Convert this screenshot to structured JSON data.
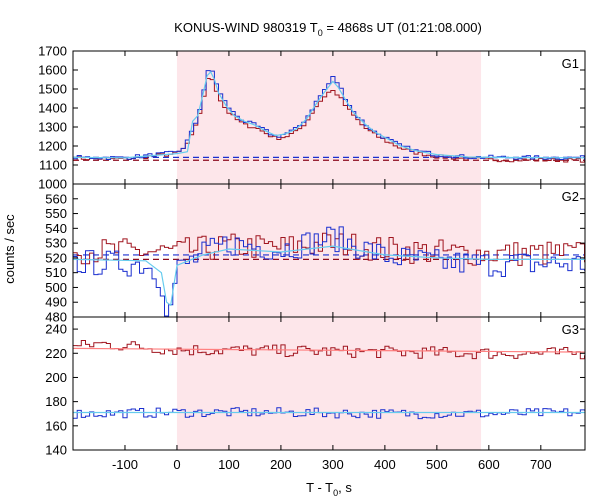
{
  "chart_data": {
    "type": "line",
    "title": {
      "prefix": "KONUS-WIND 980319 T",
      "sub": "0",
      "suffix": " = 4868s UT (01:21:08.000)"
    },
    "xlabel": {
      "prefix": "T - T",
      "sub": "0",
      "suffix": ", s"
    },
    "ylabel": "counts / sec",
    "xlim": [
      -200,
      785
    ],
    "x_ticks": [
      -100,
      0,
      100,
      200,
      300,
      400,
      500,
      600,
      700
    ],
    "x_tick_labels": [
      "-100",
      "0",
      "100",
      "200",
      "300",
      "400",
      "500",
      "600",
      "700"
    ],
    "shaded_interval": [
      0,
      585
    ],
    "colors": {
      "series_a": "#a0141e",
      "series_b": "#1a2fcf",
      "fit_a": "#ff8080",
      "fit_b": "#66ccee",
      "shade": "#fde6ea",
      "baseline_a": "#8b0a1e",
      "baseline_b": "#1a2fcf"
    },
    "panels": [
      {
        "name": "G1",
        "ylim": [
          1000,
          1700
        ],
        "y_ticks": [
          1000,
          1100,
          1200,
          1300,
          1400,
          1500,
          1600,
          1700
        ],
        "y_tick_labels": [
          "1000",
          "1100",
          "1200",
          "1300",
          "1400",
          "1500",
          "1600",
          "1700"
        ],
        "baselines": [
          1125,
          1140
        ],
        "bin": 8,
        "series": [
          {
            "color_key": "series_a",
            "points": [
              [
                -200,
                1135
              ],
              [
                -100,
                1132
              ],
              [
                0,
                1160
              ],
              [
                15,
                1190
              ],
              [
                30,
                1260
              ],
              [
                40,
                1330
              ],
              [
                50,
                1440
              ],
              [
                58,
                1540
              ],
              [
                65,
                1570
              ],
              [
                72,
                1530
              ],
              [
                80,
                1460
              ],
              [
                95,
                1390
              ],
              [
                110,
                1350
              ],
              [
                130,
                1310
              ],
              [
                150,
                1300
              ],
              [
                170,
                1270
              ],
              [
                190,
                1240
              ],
              [
                210,
                1250
              ],
              [
                230,
                1275
              ],
              [
                250,
                1330
              ],
              [
                265,
                1400
              ],
              [
                280,
                1450
              ],
              [
                290,
                1480
              ],
              [
                300,
                1490
              ],
              [
                310,
                1470
              ],
              [
                325,
                1410
              ],
              [
                340,
                1360
              ],
              [
                360,
                1300
              ],
              [
                380,
                1260
              ],
              [
                400,
                1230
              ],
              [
                430,
                1190
              ],
              [
                460,
                1165
              ],
              [
                500,
                1145
              ],
              [
                560,
                1132
              ],
              [
                600,
                1128
              ],
              [
                785,
                1125
              ]
            ],
            "noise": 10
          },
          {
            "color_key": "series_b",
            "points": [
              [
                -200,
                1140
              ],
              [
                -100,
                1138
              ],
              [
                0,
                1165
              ],
              [
                15,
                1200
              ],
              [
                30,
                1280
              ],
              [
                40,
                1350
              ],
              [
                50,
                1470
              ],
              [
                58,
                1580
              ],
              [
                65,
                1610
              ],
              [
                72,
                1570
              ],
              [
                80,
                1490
              ],
              [
                95,
                1420
              ],
              [
                110,
                1370
              ],
              [
                130,
                1330
              ],
              [
                150,
                1310
              ],
              [
                170,
                1280
              ],
              [
                190,
                1250
              ],
              [
                210,
                1265
              ],
              [
                230,
                1290
              ],
              [
                250,
                1350
              ],
              [
                265,
                1420
              ],
              [
                280,
                1480
              ],
              [
                290,
                1520
              ],
              [
                300,
                1560
              ],
              [
                310,
                1530
              ],
              [
                325,
                1450
              ],
              [
                340,
                1380
              ],
              [
                360,
                1320
              ],
              [
                380,
                1275
              ],
              [
                400,
                1245
              ],
              [
                430,
                1200
              ],
              [
                460,
                1175
              ],
              [
                500,
                1155
              ],
              [
                560,
                1142
              ],
              [
                600,
                1140
              ],
              [
                785,
                1138
              ]
            ],
            "noise": 11
          },
          {
            "color_key": "fit_b",
            "smooth": true,
            "points": [
              [
                -200,
                1140
              ],
              [
                -100,
                1138
              ],
              [
                0,
                1160
              ],
              [
                20,
                1170
              ],
              [
                30,
                1330
              ],
              [
                40,
                1360
              ],
              [
                50,
                1470
              ],
              [
                58,
                1570
              ],
              [
                65,
                1590
              ],
              [
                72,
                1550
              ],
              [
                80,
                1480
              ],
              [
                95,
                1410
              ],
              [
                110,
                1360
              ],
              [
                130,
                1330
              ],
              [
                150,
                1310
              ],
              [
                170,
                1280
              ],
              [
                190,
                1255
              ],
              [
                210,
                1265
              ],
              [
                230,
                1290
              ],
              [
                250,
                1345
              ],
              [
                265,
                1410
              ],
              [
                280,
                1470
              ],
              [
                290,
                1505
              ],
              [
                300,
                1540
              ],
              [
                310,
                1510
              ],
              [
                325,
                1440
              ],
              [
                340,
                1375
              ],
              [
                360,
                1320
              ],
              [
                380,
                1275
              ],
              [
                400,
                1245
              ],
              [
                430,
                1200
              ],
              [
                460,
                1175
              ],
              [
                500,
                1155
              ],
              [
                560,
                1142
              ],
              [
                600,
                1140
              ],
              [
                785,
                1138
              ]
            ]
          }
        ]
      },
      {
        "name": "G2",
        "ylim": [
          480,
          570
        ],
        "y_ticks": [
          480,
          490,
          500,
          510,
          520,
          530,
          540,
          550,
          560
        ],
        "y_tick_labels": [
          "480",
          "490",
          "500",
          "510",
          "520",
          "530",
          "540",
          "550",
          "560"
        ],
        "baselines": [
          519,
          522
        ],
        "bin": 8,
        "series": [
          {
            "color_key": "series_a",
            "points": [
              [
                -200,
                525
              ],
              [
                0,
                524
              ],
              [
                100,
                528
              ],
              [
                200,
                527
              ],
              [
                300,
                530
              ],
              [
                400,
                526
              ],
              [
                500,
                524
              ],
              [
                600,
                523
              ],
              [
                785,
                523
              ]
            ],
            "noise": 9
          },
          {
            "color_key": "series_b",
            "points": [
              [
                -200,
                517
              ],
              [
                -60,
                516
              ],
              [
                -30,
                506
              ],
              [
                -20,
                488
              ],
              [
                -12,
                486
              ],
              [
                0,
                512
              ],
              [
                50,
                522
              ],
              [
                100,
                530
              ],
              [
                200,
                526
              ],
              [
                300,
                534
              ],
              [
                350,
                528
              ],
              [
                400,
                521
              ],
              [
                500,
                517
              ],
              [
                600,
                516
              ],
              [
                785,
                516
              ]
            ],
            "noise": 9
          },
          {
            "color_key": "fit_b",
            "smooth": true,
            "points": [
              [
                -200,
                519
              ],
              [
                -60,
                518
              ],
              [
                -30,
                510
              ],
              [
                -20,
                490
              ],
              [
                -12,
                488
              ],
              [
                0,
                515
              ],
              [
                50,
                522
              ],
              [
                100,
                526
              ],
              [
                200,
                524
              ],
              [
                300,
                528
              ],
              [
                400,
                522
              ],
              [
                500,
                520
              ],
              [
                600,
                519
              ],
              [
                785,
                519
              ]
            ]
          }
        ]
      },
      {
        "name": "G3",
        "ylim": [
          140,
          250
        ],
        "y_ticks": [
          140,
          160,
          180,
          200,
          220,
          240
        ],
        "y_tick_labels": [
          "140",
          "160",
          "180",
          "200",
          "220",
          "240"
        ],
        "baselines": [],
        "bin": 8,
        "series": [
          {
            "color_key": "series_a",
            "points": [
              [
                -200,
                225
              ],
              [
                -150,
                228
              ],
              [
                0,
                223
              ],
              [
                200,
                222
              ],
              [
                400,
                221
              ],
              [
                600,
                220
              ],
              [
                785,
                220
              ]
            ],
            "noise": 5
          },
          {
            "color_key": "fit_a",
            "smooth": true,
            "points": [
              [
                -200,
                224
              ],
              [
                785,
                221
              ]
            ]
          },
          {
            "color_key": "series_b",
            "points": [
              [
                -200,
                170
              ],
              [
                0,
                171
              ],
              [
                200,
                171
              ],
              [
                400,
                170
              ],
              [
                600,
                170
              ],
              [
                785,
                171
              ]
            ],
            "noise": 4
          },
          {
            "color_key": "fit_b",
            "smooth": true,
            "points": [
              [
                -200,
                171
              ],
              [
                785,
                171
              ]
            ]
          }
        ]
      }
    ]
  }
}
